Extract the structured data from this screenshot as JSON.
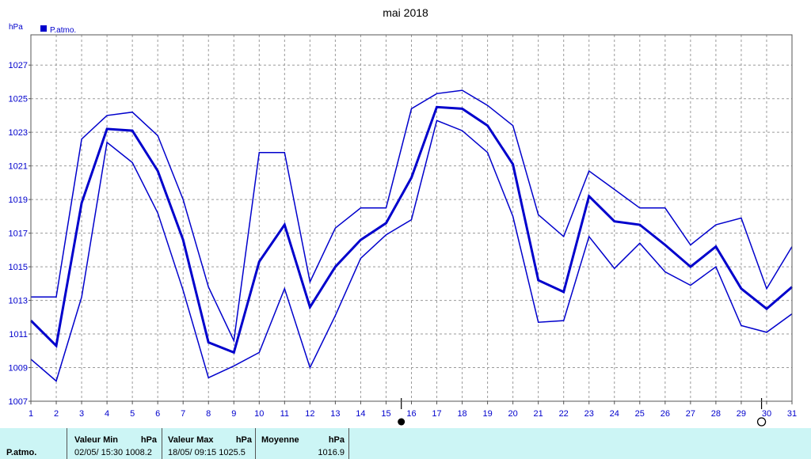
{
  "chart_data": {
    "type": "line",
    "title": "mai 2018",
    "ylabel": "hPa",
    "legend": "P.atmo.",
    "legend_placement": "top-left",
    "x": [
      1,
      2,
      3,
      4,
      5,
      6,
      7,
      8,
      9,
      10,
      11,
      12,
      13,
      14,
      15,
      16,
      17,
      18,
      19,
      20,
      21,
      22,
      23,
      24,
      25,
      26,
      27,
      28,
      29,
      30,
      31
    ],
    "ylim": [
      1007,
      1028.8
    ],
    "yticks": [
      1007,
      1009,
      1011,
      1013,
      1015,
      1017,
      1019,
      1021,
      1023,
      1025,
      1027
    ],
    "grid": true,
    "series": [
      {
        "role": "max",
        "values": [
          1013.2,
          1013.2,
          1022.6,
          1024.0,
          1024.2,
          1022.8,
          1019.0,
          1013.8,
          1010.6,
          1021.8,
          1021.8,
          1014.1,
          1017.3,
          1018.5,
          1018.5,
          1024.4,
          1025.3,
          1025.5,
          1024.6,
          1023.4,
          1018.1,
          1016.8,
          1020.7,
          1019.6,
          1018.5,
          1018.5,
          1016.3,
          1017.5,
          1017.9,
          1013.7,
          1016.2
        ]
      },
      {
        "role": "mean",
        "values": [
          1011.8,
          1010.3,
          1018.8,
          1023.2,
          1023.1,
          1020.7,
          1016.6,
          1010.5,
          1009.9,
          1015.3,
          1017.5,
          1012.6,
          1015.0,
          1016.6,
          1017.6,
          1020.3,
          1024.5,
          1024.4,
          1023.4,
          1021.1,
          1014.2,
          1013.5,
          1019.2,
          1017.7,
          1017.5,
          1016.3,
          1015.0,
          1016.2,
          1013.7,
          1012.5,
          1013.8
        ]
      },
      {
        "role": "min",
        "values": [
          1009.5,
          1008.2,
          1013.2,
          1022.4,
          1021.2,
          1018.2,
          1013.6,
          1008.4,
          1009.1,
          1009.9,
          1013.7,
          1009.0,
          1012.1,
          1015.5,
          1016.9,
          1017.8,
          1023.7,
          1023.1,
          1021.8,
          1018.0,
          1011.7,
          1011.8,
          1016.8,
          1014.9,
          1016.4,
          1014.7,
          1013.9,
          1015.0,
          1011.5,
          1011.1,
          1012.2
        ]
      }
    ],
    "moon_markers": [
      {
        "day": 15.6,
        "symbol": "●"
      },
      {
        "day": 29.8,
        "symbol": "O"
      }
    ],
    "colors": {
      "line": "#0000cc",
      "axis_text": "#0000cc",
      "grid": "#9a9a9a",
      "legend_swatch": "#0000cc"
    }
  },
  "stats": {
    "param": "P.atmo.",
    "min_label": "Valeur Min",
    "max_label": "Valeur Max",
    "avg_label": "Moyenne",
    "unit": "hPa",
    "min_value": "02/05/  15:30 1008.2",
    "max_value": "18/05/  09:15 1025.5",
    "avg_value": "1016.9"
  }
}
